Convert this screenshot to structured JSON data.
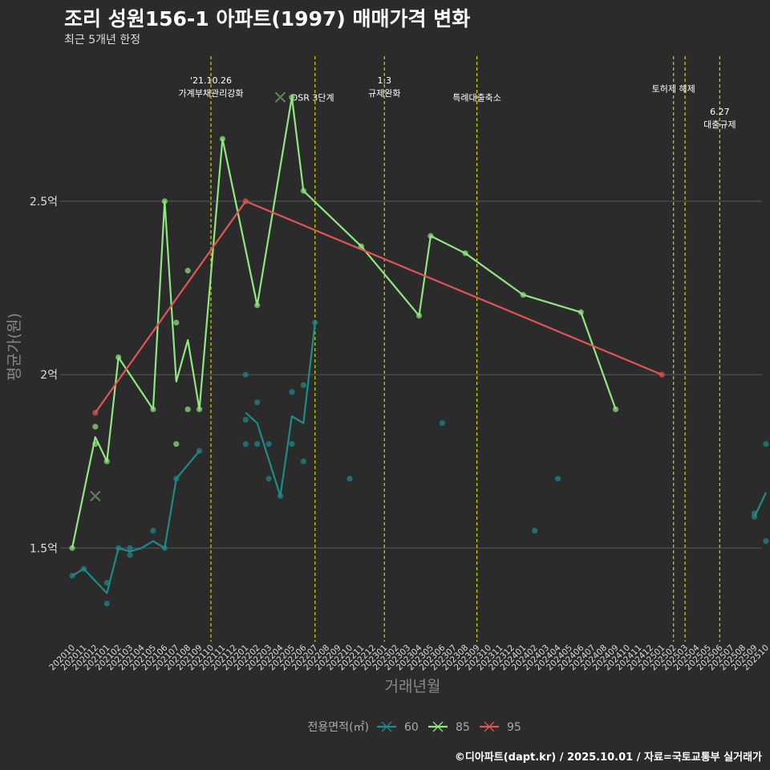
{
  "header": {
    "title": "조리 성원156-1 아파트(1997) 매매가격 변화",
    "subtitle": "최근 5개년 한정"
  },
  "footer": {
    "caption": "©디아파트(dapt.kr) / 2025.10.01 / 자료=국토교통부 실거래가"
  },
  "colors": {
    "background": "#2b2b2b",
    "grid": "#5a5a5a",
    "event_line": "#d4d400",
    "s60": "#1f8a8a",
    "s85": "#8ee87f",
    "s95": "#e05555"
  },
  "chart_data": {
    "type": "line",
    "title": "조리 성원156-1 아파트(1997) 매매가격 변화",
    "xlabel": "거래년월",
    "ylabel": "평균가(원)",
    "ylim": [
      1.23,
      2.93
    ],
    "y_ticks": [
      {
        "value": 1.5,
        "label": "1.5억"
      },
      {
        "value": 2.0,
        "label": "2억"
      },
      {
        "value": 2.5,
        "label": "2.5억"
      }
    ],
    "x_ticks": [
      "202010",
      "202011",
      "202012",
      "202101",
      "202102",
      "202103",
      "202104",
      "202105",
      "202106",
      "202107",
      "202108",
      "202109",
      "202110",
      "202111",
      "202112",
      "202201",
      "202202",
      "202203",
      "202204",
      "202205",
      "202206",
      "202207",
      "202208",
      "202209",
      "202210",
      "202211",
      "202212",
      "202301",
      "202302",
      "202303",
      "202304",
      "202305",
      "202306",
      "202307",
      "202308",
      "202309",
      "202310",
      "202311",
      "202312",
      "202401",
      "202402",
      "202403",
      "202404",
      "202405",
      "202406",
      "202407",
      "202408",
      "202409",
      "202410",
      "202411",
      "202412",
      "202501",
      "202502",
      "202503",
      "202504",
      "202505",
      "202506",
      "202507",
      "202508",
      "202509",
      "202510"
    ],
    "legend": {
      "title": "전용면적(㎡)",
      "entries": [
        {
          "key": "s60",
          "label": "60"
        },
        {
          "key": "s85",
          "label": "85"
        },
        {
          "key": "s95",
          "label": "95"
        }
      ]
    },
    "events": [
      {
        "x": 12,
        "lines": [
          "'21.10.26",
          "가계부채관리강화"
        ],
        "label_y": 2.84
      },
      {
        "x": 21,
        "lines": [
          "DSR 3단계"
        ],
        "label_y": 2.79,
        "anchor": "start",
        "dx": -30
      },
      {
        "x": 27,
        "lines": [
          "1.3",
          "규제완화"
        ],
        "label_y": 2.84
      },
      {
        "x": 35,
        "lines": [
          "특례대출축소"
        ],
        "label_y": 2.79
      },
      {
        "x": 52,
        "lines": [
          "토허제 해제"
        ],
        "label_y": 2.815
      },
      {
        "x": 53,
        "lines": [],
        "label_y": 2.8
      },
      {
        "x": 56,
        "lines": [
          "6.27",
          "대출규제"
        ],
        "label_y": 2.75
      }
    ],
    "series": [
      {
        "key": "s60",
        "name": "60",
        "segments": [
          [
            [
              0,
              1.42
            ],
            [
              1,
              1.44
            ],
            [
              3,
              1.37
            ],
            [
              4,
              1.5
            ],
            [
              5,
              1.49
            ],
            [
              6,
              1.5
            ],
            [
              7,
              1.52
            ],
            [
              8,
              1.5
            ],
            [
              9,
              1.7
            ],
            [
              11,
              1.78
            ]
          ],
          [
            [
              15,
              1.89
            ],
            [
              16,
              1.86
            ],
            [
              18,
              1.65
            ],
            [
              19,
              1.88
            ],
            [
              20,
              1.86
            ],
            [
              21,
              2.15
            ]
          ],
          [
            [
              59,
              1.59
            ],
            [
              60,
              1.66
            ]
          ]
        ],
        "points": [
          [
            0,
            1.42
          ],
          [
            1,
            1.44
          ],
          [
            3,
            1.34
          ],
          [
            3,
            1.4
          ],
          [
            4,
            1.5
          ],
          [
            5,
            1.48
          ],
          [
            5,
            1.5
          ],
          [
            7,
            1.55
          ],
          [
            8,
            1.5
          ],
          [
            9,
            1.7
          ],
          [
            11,
            1.78
          ],
          [
            15,
            1.8
          ],
          [
            15,
            1.87
          ],
          [
            15,
            2.0
          ],
          [
            16,
            1.8
          ],
          [
            16,
            1.92
          ],
          [
            17,
            1.7
          ],
          [
            17,
            1.8
          ],
          [
            18,
            1.65
          ],
          [
            19,
            1.8
          ],
          [
            19,
            1.95
          ],
          [
            20,
            1.75
          ],
          [
            20,
            1.97
          ],
          [
            21,
            2.15
          ],
          [
            24,
            1.7
          ],
          [
            32,
            1.86
          ],
          [
            40,
            1.55
          ],
          [
            42,
            1.7
          ],
          [
            59,
            1.59
          ],
          [
            59,
            1.6
          ],
          [
            60,
            1.52
          ],
          [
            60,
            1.8
          ]
        ]
      },
      {
        "key": "s85",
        "name": "85",
        "segments": [
          [
            [
              0,
              1.5
            ],
            [
              2,
              1.82
            ],
            [
              3,
              1.75
            ],
            [
              4,
              2.05
            ],
            [
              7,
              1.9
            ],
            [
              8,
              2.5
            ],
            [
              9,
              1.98
            ],
            [
              10,
              2.1
            ],
            [
              11,
              1.9
            ],
            [
              13,
              2.68
            ],
            [
              16,
              2.2
            ],
            [
              19,
              2.8
            ],
            [
              20,
              2.53
            ],
            [
              25,
              2.37
            ],
            [
              30,
              2.17
            ],
            [
              31,
              2.4
            ],
            [
              34,
              2.35
            ],
            [
              39,
              2.23
            ],
            [
              44,
              2.18
            ],
            [
              47,
              1.9
            ]
          ]
        ],
        "points": [
          [
            0,
            1.5
          ],
          [
            2,
            1.8
          ],
          [
            2,
            1.85
          ],
          [
            3,
            1.75
          ],
          [
            4,
            2.05
          ],
          [
            7,
            1.9
          ],
          [
            8,
            2.5
          ],
          [
            9,
            1.8
          ],
          [
            9,
            2.15
          ],
          [
            10,
            1.9
          ],
          [
            10,
            2.3
          ],
          [
            11,
            1.9
          ],
          [
            13,
            2.68
          ],
          [
            16,
            2.2
          ],
          [
            19,
            2.8
          ],
          [
            20,
            2.53
          ],
          [
            25,
            2.37
          ],
          [
            30,
            2.17
          ],
          [
            31,
            2.4
          ],
          [
            34,
            2.35
          ],
          [
            39,
            2.23
          ],
          [
            44,
            2.18
          ],
          [
            47,
            1.9
          ]
        ],
        "crosses": [
          [
            2,
            1.65
          ],
          [
            18,
            2.8
          ]
        ]
      },
      {
        "key": "s95",
        "name": "95",
        "segments": [
          [
            [
              2,
              1.89
            ],
            [
              15,
              2.5
            ],
            [
              51,
              2.0
            ]
          ]
        ],
        "points": [
          [
            2,
            1.89
          ],
          [
            15,
            2.5
          ],
          [
            51,
            2.0
          ]
        ]
      }
    ]
  }
}
